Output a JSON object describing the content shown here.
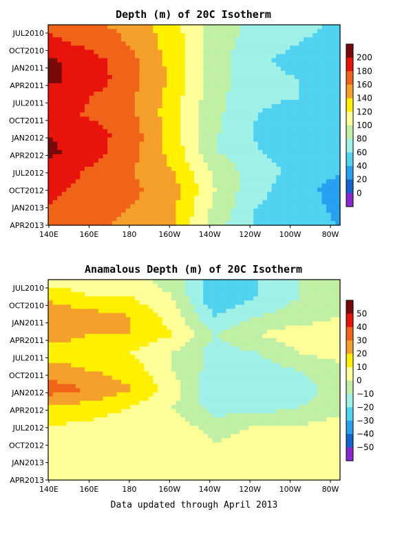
{
  "chart_data": [
    {
      "type": "heatmap",
      "title": "Depth (m) of 20C Isotherm",
      "x_ticks": [
        "140E",
        "160E",
        "180",
        "160W",
        "140W",
        "120W",
        "100W",
        "80W"
      ],
      "y_ticks": [
        "JUL2010",
        "OCT2010",
        "JAN2011",
        "APR2011",
        "JUL2011",
        "OCT2011",
        "JAN2012",
        "APR2012",
        "JUL2012",
        "OCT2012",
        "JAN2013",
        "APR2013"
      ],
      "colorbar": {
        "levels": [
          "200",
          "180",
          "160",
          "140",
          "120",
          "100",
          "80",
          "60",
          "40",
          "20",
          "0"
        ],
        "colors": [
          "#7a0a0a",
          "#e8140c",
          "#f0641a",
          "#f5a02a",
          "#fff000",
          "#ffff99",
          "#bff0a5",
          "#9ff0e6",
          "#50d2f0",
          "#28a0f0",
          "#1464d2",
          "#8c28d2"
        ]
      },
      "x": [
        140,
        160,
        180,
        200,
        220,
        240,
        260,
        280
      ],
      "y_months": [
        "JUL2010",
        "OCT2010",
        "JAN2011",
        "APR2011",
        "JUL2011",
        "OCT2011",
        "JAN2012",
        "APR2012",
        "JUL2012",
        "OCT2012",
        "JAN2013",
        "APR2013"
      ],
      "values": [
        [
          175,
          165,
          152,
          128,
          90,
          75,
          68,
          55
        ],
        [
          185,
          175,
          158,
          130,
          88,
          72,
          60,
          50
        ],
        [
          205,
          190,
          165,
          132,
          88,
          65,
          50,
          45
        ],
        [
          205,
          192,
          168,
          135,
          88,
          70,
          60,
          55
        ],
        [
          190,
          180,
          162,
          130,
          85,
          65,
          60,
          60
        ],
        [
          185,
          178,
          165,
          128,
          85,
          60,
          50,
          45
        ],
        [
          200,
          190,
          170,
          130,
          82,
          58,
          45,
          40
        ],
        [
          205,
          188,
          168,
          132,
          82,
          62,
          50,
          40
        ],
        [
          190,
          178,
          160,
          140,
          95,
          68,
          55,
          42
        ],
        [
          185,
          175,
          165,
          148,
          100,
          65,
          50,
          30
        ],
        [
          180,
          170,
          160,
          145,
          95,
          60,
          50,
          35
        ],
        [
          175,
          165,
          155,
          140,
          90,
          55,
          45,
          40
        ]
      ]
    },
    {
      "type": "heatmap",
      "title": "Anamalous Depth (m) of 20C Isotherm",
      "x_ticks": [
        "140E",
        "160E",
        "180",
        "160W",
        "140W",
        "120W",
        "100W",
        "80W"
      ],
      "y_ticks": [
        "JUL2010",
        "OCT2010",
        "JAN2011",
        "APR2011",
        "JUL2011",
        "OCT2011",
        "JAN2012",
        "APR2012",
        "JUL2012",
        "OCT2012",
        "JAN2013",
        "APR2013"
      ],
      "colorbar": {
        "levels": [
          "50",
          "40",
          "30",
          "20",
          "10",
          "0",
          "−10",
          "−20",
          "−30",
          "−40",
          "−50"
        ],
        "colors": [
          "#7a0a0a",
          "#e8140c",
          "#f0641a",
          "#f5a02a",
          "#fff000",
          "#ffff99",
          "#bff0a5",
          "#9ff0e6",
          "#50d2f0",
          "#28a0f0",
          "#1464d2",
          "#8c28d2"
        ]
      },
      "x": [
        140,
        160,
        180,
        200,
        220,
        240,
        260,
        280
      ],
      "y_months": [
        "JUL2010",
        "OCT2010",
        "JAN2011",
        "APR2011",
        "JUL2011",
        "OCT2011",
        "JAN2012",
        "APR2012",
        "JUL2012",
        "OCT2012",
        "JAN2013",
        "APR2013"
      ],
      "values": [
        [
          5,
          5,
          5,
          -5,
          -25,
          -20,
          -10,
          -5
        ],
        [
          18,
          10,
          10,
          0,
          -30,
          -20,
          -10,
          -5
        ],
        [
          30,
          25,
          20,
          5,
          -20,
          -10,
          -5,
          0
        ],
        [
          25,
          20,
          20,
          10,
          -10,
          0,
          5,
          5
        ],
        [
          15,
          15,
          10,
          0,
          -15,
          -10,
          0,
          5
        ],
        [
          25,
          20,
          15,
          0,
          -15,
          -15,
          -10,
          -5
        ],
        [
          35,
          30,
          20,
          5,
          -20,
          -20,
          -15,
          -5
        ],
        [
          20,
          15,
          10,
          0,
          -15,
          -15,
          -10,
          -5
        ],
        [
          10,
          8,
          5,
          5,
          -5,
          0,
          0,
          5
        ],
        [
          5,
          5,
          5,
          10,
          0,
          5,
          5,
          10
        ],
        [
          0,
          5,
          5,
          5,
          0,
          5,
          5,
          5
        ],
        [
          5,
          5,
          5,
          5,
          0,
          0,
          5,
          5
        ]
      ]
    }
  ],
  "footer": "Data updated through April 2013"
}
